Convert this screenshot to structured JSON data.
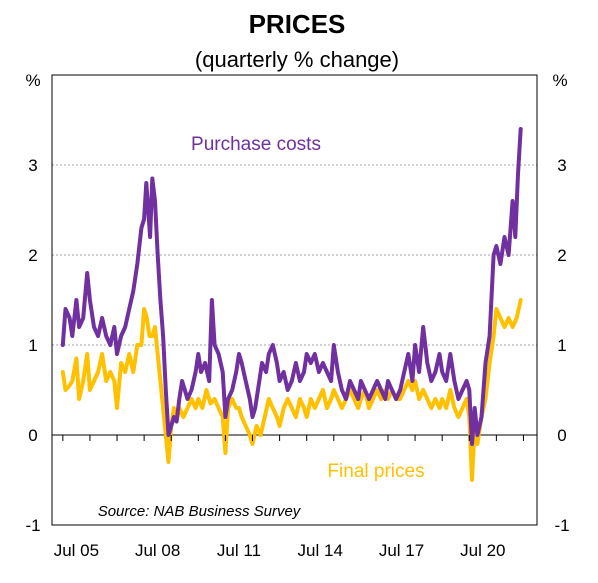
{
  "chart_data": {
    "type": "line",
    "title": "PRICES",
    "subtitle": "(quarterly % change)",
    "unit_left": "%",
    "unit_right": "%",
    "ylim": [
      -1,
      4
    ],
    "yticks": [
      -1,
      0,
      1,
      2,
      3
    ],
    "ytick_labels": [
      "-1",
      "0",
      "1",
      "2",
      "3"
    ],
    "xticks": [
      "Jul 05",
      "Jul 08",
      "Jul 11",
      "Jul 14",
      "Jul 17",
      "Jul 20"
    ],
    "xtick_values": [
      2005.5,
      2008.5,
      2011.5,
      2014.5,
      2017.5,
      2020.5
    ],
    "xlim": [
      2004.6,
      2022.5
    ],
    "grid": true,
    "source": "Source: NAB Business Survey",
    "series": [
      {
        "name": "Purchase costs",
        "color": "#7030A0",
        "points": [
          [
            2005.0,
            1.0
          ],
          [
            2005.1,
            1.4
          ],
          [
            2005.25,
            1.3
          ],
          [
            2005.35,
            1.1
          ],
          [
            2005.5,
            1.5
          ],
          [
            2005.6,
            1.2
          ],
          [
            2005.75,
            1.3
          ],
          [
            2005.9,
            1.8
          ],
          [
            2006.0,
            1.5
          ],
          [
            2006.15,
            1.2
          ],
          [
            2006.3,
            1.1
          ],
          [
            2006.45,
            1.3
          ],
          [
            2006.6,
            1.1
          ],
          [
            2006.75,
            1.0
          ],
          [
            2006.9,
            1.2
          ],
          [
            2007.0,
            0.9
          ],
          [
            2007.15,
            1.1
          ],
          [
            2007.3,
            1.2
          ],
          [
            2007.45,
            1.4
          ],
          [
            2007.6,
            1.6
          ],
          [
            2007.75,
            1.9
          ],
          [
            2007.9,
            2.3
          ],
          [
            2008.0,
            2.4
          ],
          [
            2008.08,
            2.8
          ],
          [
            2008.15,
            2.5
          ],
          [
            2008.22,
            2.2
          ],
          [
            2008.3,
            2.85
          ],
          [
            2008.4,
            2.6
          ],
          [
            2008.5,
            2.0
          ],
          [
            2008.6,
            1.5
          ],
          [
            2008.7,
            1.1
          ],
          [
            2008.8,
            0.5
          ],
          [
            2008.9,
            0.0
          ],
          [
            2009.0,
            0.1
          ],
          [
            2009.1,
            0.2
          ],
          [
            2009.2,
            0.15
          ],
          [
            2009.3,
            0.4
          ],
          [
            2009.4,
            0.6
          ],
          [
            2009.5,
            0.5
          ],
          [
            2009.6,
            0.4
          ],
          [
            2009.75,
            0.5
          ],
          [
            2009.9,
            0.7
          ],
          [
            2010.0,
            0.9
          ],
          [
            2010.1,
            0.7
          ],
          [
            2010.25,
            0.8
          ],
          [
            2010.4,
            0.6
          ],
          [
            2010.5,
            1.5
          ],
          [
            2010.6,
            1.0
          ],
          [
            2010.75,
            0.9
          ],
          [
            2010.9,
            0.7
          ],
          [
            2011.0,
            0.2
          ],
          [
            2011.1,
            0.4
          ],
          [
            2011.25,
            0.5
          ],
          [
            2011.4,
            0.7
          ],
          [
            2011.5,
            0.9
          ],
          [
            2011.6,
            0.8
          ],
          [
            2011.75,
            0.6
          ],
          [
            2011.9,
            0.4
          ],
          [
            2012.0,
            0.2
          ],
          [
            2012.1,
            0.3
          ],
          [
            2012.25,
            0.6
          ],
          [
            2012.35,
            0.8
          ],
          [
            2012.5,
            0.7
          ],
          [
            2012.6,
            0.9
          ],
          [
            2012.75,
            1.0
          ],
          [
            2012.9,
            0.8
          ],
          [
            2013.0,
            0.6
          ],
          [
            2013.15,
            0.7
          ],
          [
            2013.3,
            0.5
          ],
          [
            2013.45,
            0.6
          ],
          [
            2013.6,
            0.8
          ],
          [
            2013.75,
            0.6
          ],
          [
            2013.9,
            0.7
          ],
          [
            2014.0,
            0.9
          ],
          [
            2014.15,
            0.8
          ],
          [
            2014.3,
            0.9
          ],
          [
            2014.45,
            0.7
          ],
          [
            2014.6,
            0.8
          ],
          [
            2014.75,
            0.7
          ],
          [
            2014.9,
            0.6
          ],
          [
            2015.0,
            1.0
          ],
          [
            2015.15,
            0.7
          ],
          [
            2015.3,
            0.5
          ],
          [
            2015.45,
            0.4
          ],
          [
            2015.6,
            0.6
          ],
          [
            2015.75,
            0.5
          ],
          [
            2015.9,
            0.4
          ],
          [
            2016.0,
            0.6
          ],
          [
            2016.15,
            0.5
          ],
          [
            2016.3,
            0.4
          ],
          [
            2016.45,
            0.5
          ],
          [
            2016.6,
            0.6
          ],
          [
            2016.75,
            0.5
          ],
          [
            2016.9,
            0.4
          ],
          [
            2017.0,
            0.6
          ],
          [
            2017.15,
            0.5
          ],
          [
            2017.3,
            0.4
          ],
          [
            2017.45,
            0.5
          ],
          [
            2017.6,
            0.7
          ],
          [
            2017.75,
            0.9
          ],
          [
            2017.9,
            0.6
          ],
          [
            2018.0,
            1.0
          ],
          [
            2018.15,
            0.7
          ],
          [
            2018.3,
            1.2
          ],
          [
            2018.45,
            0.8
          ],
          [
            2018.6,
            0.6
          ],
          [
            2018.75,
            0.7
          ],
          [
            2018.9,
            0.9
          ],
          [
            2019.0,
            0.7
          ],
          [
            2019.15,
            0.6
          ],
          [
            2019.3,
            0.9
          ],
          [
            2019.45,
            0.6
          ],
          [
            2019.6,
            0.4
          ],
          [
            2019.75,
            0.5
          ],
          [
            2019.9,
            0.6
          ],
          [
            2020.0,
            0.5
          ],
          [
            2020.1,
            -0.1
          ],
          [
            2020.2,
            0.3
          ],
          [
            2020.3,
            0.0
          ],
          [
            2020.45,
            0.2
          ],
          [
            2020.6,
            0.8
          ],
          [
            2020.75,
            1.1
          ],
          [
            2020.9,
            2.0
          ],
          [
            2021.0,
            2.1
          ],
          [
            2021.15,
            1.9
          ],
          [
            2021.3,
            2.2
          ],
          [
            2021.45,
            2.0
          ],
          [
            2021.6,
            2.6
          ],
          [
            2021.7,
            2.2
          ],
          [
            2021.8,
            2.9
          ],
          [
            2021.9,
            3.4
          ]
        ]
      },
      {
        "name": "Final prices",
        "color": "#FFC000",
        "points": [
          [
            2005.0,
            0.7
          ],
          [
            2005.1,
            0.5
          ],
          [
            2005.25,
            0.55
          ],
          [
            2005.35,
            0.6
          ],
          [
            2005.5,
            0.85
          ],
          [
            2005.6,
            0.4
          ],
          [
            2005.75,
            0.6
          ],
          [
            2005.9,
            0.9
          ],
          [
            2006.0,
            0.5
          ],
          [
            2006.15,
            0.6
          ],
          [
            2006.3,
            0.7
          ],
          [
            2006.45,
            0.9
          ],
          [
            2006.6,
            0.6
          ],
          [
            2006.75,
            0.7
          ],
          [
            2006.9,
            0.6
          ],
          [
            2007.0,
            0.3
          ],
          [
            2007.15,
            0.8
          ],
          [
            2007.3,
            0.7
          ],
          [
            2007.45,
            0.9
          ],
          [
            2007.6,
            0.7
          ],
          [
            2007.75,
            1.0
          ],
          [
            2007.9,
            1.0
          ],
          [
            2008.0,
            1.4
          ],
          [
            2008.1,
            1.3
          ],
          [
            2008.2,
            1.1
          ],
          [
            2008.3,
            1.1
          ],
          [
            2008.4,
            1.2
          ],
          [
            2008.5,
            0.9
          ],
          [
            2008.6,
            0.6
          ],
          [
            2008.7,
            0.3
          ],
          [
            2008.8,
            0.0
          ],
          [
            2008.9,
            -0.3
          ],
          [
            2009.0,
            0.1
          ],
          [
            2009.1,
            0.3
          ],
          [
            2009.2,
            0.15
          ],
          [
            2009.3,
            0.3
          ],
          [
            2009.45,
            0.2
          ],
          [
            2009.6,
            0.3
          ],
          [
            2009.75,
            0.4
          ],
          [
            2009.9,
            0.3
          ],
          [
            2010.0,
            0.4
          ],
          [
            2010.15,
            0.3
          ],
          [
            2010.3,
            0.5
          ],
          [
            2010.45,
            0.35
          ],
          [
            2010.6,
            0.4
          ],
          [
            2010.75,
            0.3
          ],
          [
            2010.9,
            0.2
          ],
          [
            2011.0,
            -0.2
          ],
          [
            2011.1,
            0.3
          ],
          [
            2011.25,
            0.4
          ],
          [
            2011.4,
            0.3
          ],
          [
            2011.5,
            0.3
          ],
          [
            2011.6,
            0.2
          ],
          [
            2011.75,
            0.1
          ],
          [
            2011.9,
            0.0
          ],
          [
            2012.0,
            -0.1
          ],
          [
            2012.15,
            0.1
          ],
          [
            2012.3,
            0.0
          ],
          [
            2012.45,
            0.2
          ],
          [
            2012.6,
            0.4
          ],
          [
            2012.75,
            0.3
          ],
          [
            2012.9,
            0.2
          ],
          [
            2013.0,
            0.1
          ],
          [
            2013.15,
            0.3
          ],
          [
            2013.3,
            0.4
          ],
          [
            2013.45,
            0.3
          ],
          [
            2013.6,
            0.2
          ],
          [
            2013.75,
            0.4
          ],
          [
            2013.9,
            0.3
          ],
          [
            2014.0,
            0.2
          ],
          [
            2014.15,
            0.4
          ],
          [
            2014.3,
            0.3
          ],
          [
            2014.45,
            0.4
          ],
          [
            2014.6,
            0.5
          ],
          [
            2014.75,
            0.3
          ],
          [
            2014.9,
            0.4
          ],
          [
            2015.0,
            0.5
          ],
          [
            2015.15,
            0.4
          ],
          [
            2015.3,
            0.3
          ],
          [
            2015.45,
            0.4
          ],
          [
            2015.6,
            0.5
          ],
          [
            2015.75,
            0.4
          ],
          [
            2015.9,
            0.3
          ],
          [
            2016.0,
            0.4
          ],
          [
            2016.15,
            0.5
          ],
          [
            2016.3,
            0.3
          ],
          [
            2016.45,
            0.4
          ],
          [
            2016.6,
            0.5
          ],
          [
            2016.75,
            0.4
          ],
          [
            2016.9,
            0.5
          ],
          [
            2017.0,
            0.4
          ],
          [
            2017.15,
            0.5
          ],
          [
            2017.3,
            0.4
          ],
          [
            2017.45,
            0.4
          ],
          [
            2017.6,
            0.5
          ],
          [
            2017.75,
            0.6
          ],
          [
            2017.9,
            0.5
          ],
          [
            2018.0,
            0.6
          ],
          [
            2018.15,
            0.4
          ],
          [
            2018.3,
            0.5
          ],
          [
            2018.45,
            0.4
          ],
          [
            2018.6,
            0.3
          ],
          [
            2018.75,
            0.4
          ],
          [
            2018.9,
            0.3
          ],
          [
            2019.0,
            0.4
          ],
          [
            2019.15,
            0.3
          ],
          [
            2019.3,
            0.5
          ],
          [
            2019.45,
            0.3
          ],
          [
            2019.6,
            0.2
          ],
          [
            2019.75,
            0.3
          ],
          [
            2019.9,
            0.4
          ],
          [
            2020.0,
            0.2
          ],
          [
            2020.1,
            -0.5
          ],
          [
            2020.2,
            0.1
          ],
          [
            2020.3,
            -0.1
          ],
          [
            2020.45,
            0.2
          ],
          [
            2020.6,
            0.4
          ],
          [
            2020.75,
            0.8
          ],
          [
            2020.9,
            1.1
          ],
          [
            2021.0,
            1.4
          ],
          [
            2021.15,
            1.3
          ],
          [
            2021.3,
            1.2
          ],
          [
            2021.45,
            1.3
          ],
          [
            2021.6,
            1.2
          ],
          [
            2021.75,
            1.3
          ],
          [
            2021.9,
            1.5
          ]
        ]
      }
    ]
  }
}
